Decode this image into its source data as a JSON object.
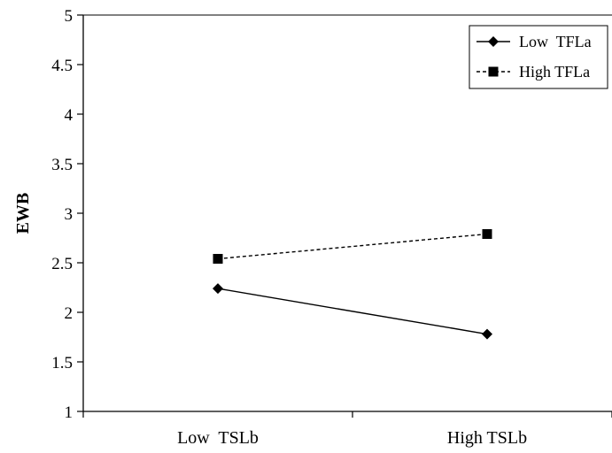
{
  "chart_data": {
    "type": "line",
    "title": "",
    "xlabel": "",
    "ylabel": "EWB",
    "ylim": [
      1,
      5
    ],
    "yticks": [
      "1",
      "1.5",
      "2",
      "2.5",
      "3",
      "3.5",
      "4",
      "4.5",
      "5"
    ],
    "categories": [
      "Low  TSLb",
      "High TSLb"
    ],
    "series": [
      {
        "name": "Low  TFLa",
        "values": [
          2.24,
          1.78
        ],
        "marker": "diamond",
        "line": "solid",
        "color": "#000000"
      },
      {
        "name": "High TFLa",
        "values": [
          2.54,
          2.79
        ],
        "marker": "square",
        "line": "dashed",
        "color": "#000000"
      }
    ],
    "legend": "top-right",
    "grid": false
  }
}
